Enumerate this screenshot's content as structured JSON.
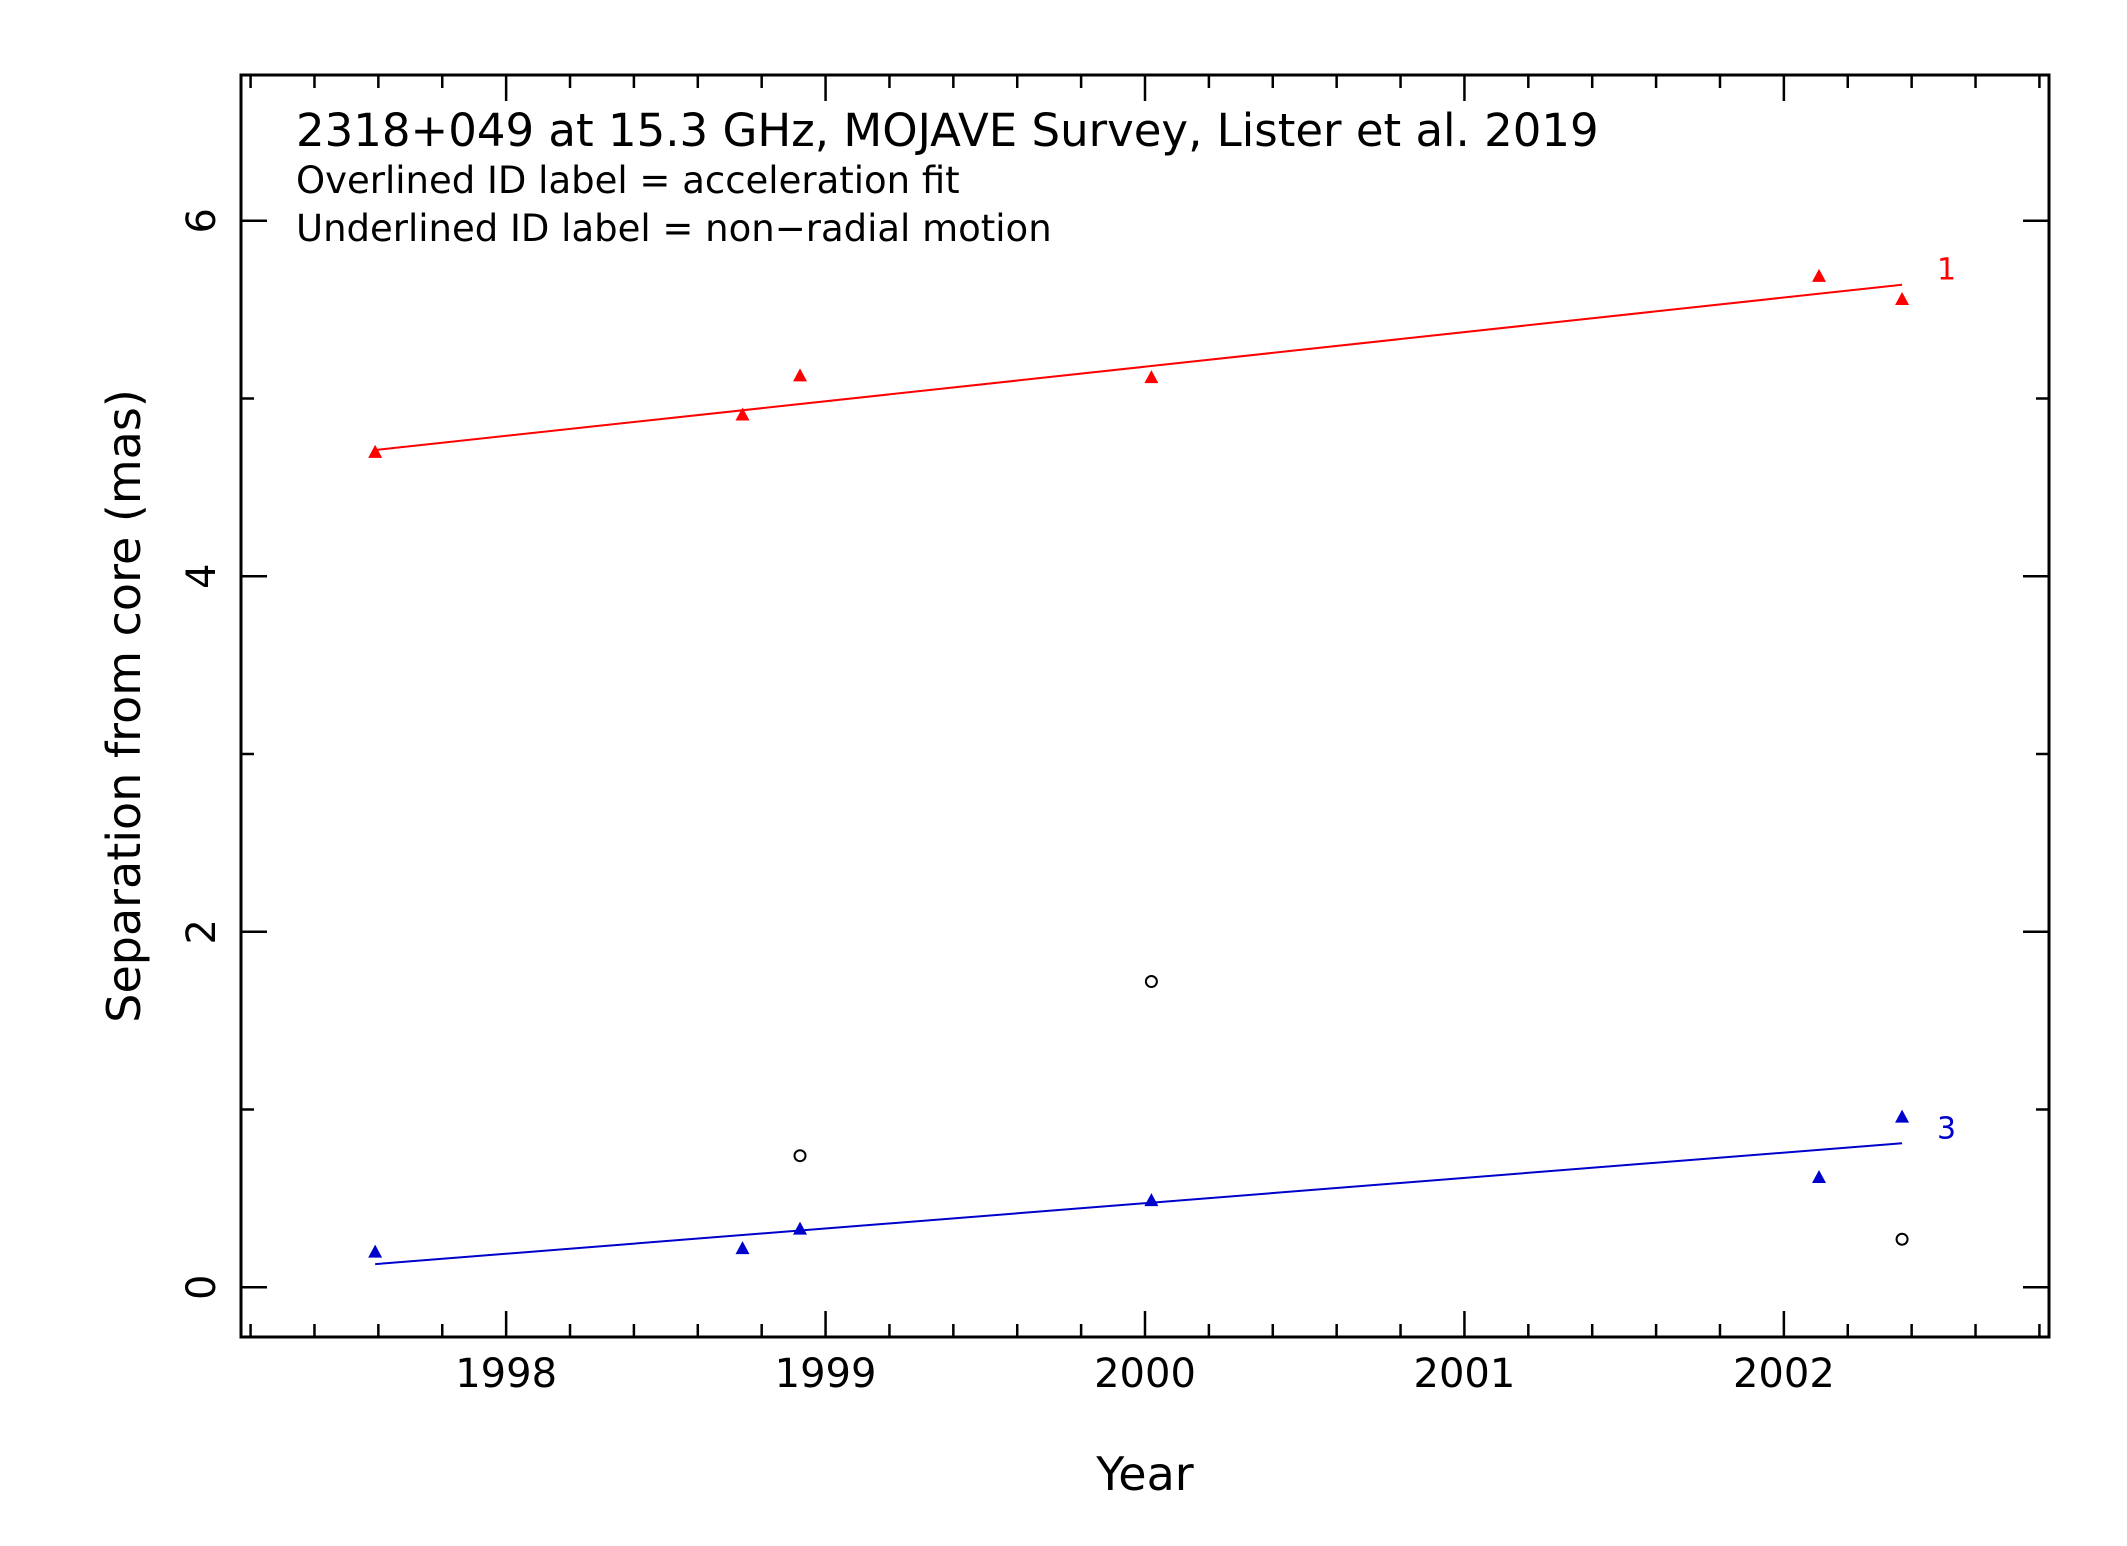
{
  "chart_data": {
    "type": "scatter",
    "title": "2318+049 at 15.3 GHz, MOJAVE Survey, Lister et al. 2019",
    "annotations": [
      "Overlined ID label = acceleration fit",
      "Underlined ID label = non−radial motion"
    ],
    "xlabel": "Year",
    "ylabel": "Separation from core (mas)",
    "xlim": [
      1997.17,
      2002.83
    ],
    "ylim": [
      -0.28,
      6.82
    ],
    "xticks": [
      "1998",
      "1999",
      "2000",
      "2001",
      "2002"
    ],
    "yticks": [
      "0",
      "2",
      "4",
      "6"
    ],
    "grid": false,
    "series": [
      {
        "name": "1",
        "color": "#ff0000",
        "marker": "triangle",
        "x": [
          1997.59,
          1998.74,
          1998.92,
          2000.02,
          2002.11,
          2002.37
        ],
        "y": [
          4.7,
          4.91,
          5.13,
          5.12,
          5.69,
          5.56
        ],
        "fit": {
          "x": [
            1997.59,
            2002.37
          ],
          "y": [
            4.71,
            5.64
          ]
        }
      },
      {
        "name": "3",
        "color": "#0000cc",
        "marker": "triangle",
        "x": [
          1997.59,
          1998.74,
          1998.92,
          2000.02,
          2002.11,
          2002.37
        ],
        "y": [
          0.2,
          0.22,
          0.33,
          0.49,
          0.62,
          0.96
        ],
        "fit": {
          "x": [
            1997.59,
            2002.37
          ],
          "y": [
            0.13,
            0.81
          ]
        }
      },
      {
        "color": "#000000",
        "marker": "open-circle",
        "x": [
          1998.92,
          2000.02,
          2002.37
        ],
        "y": [
          0.74,
          1.72,
          0.27
        ]
      }
    ]
  }
}
